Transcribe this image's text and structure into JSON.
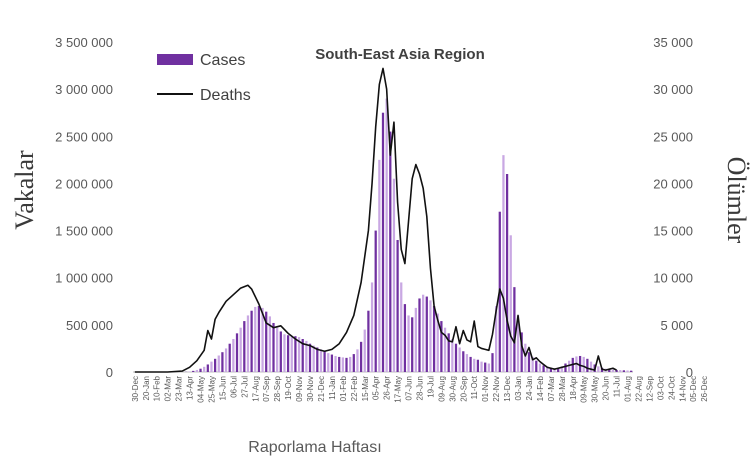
{
  "chart_data": {
    "type": "bar",
    "title": "South-East Asia Region",
    "xlabel": "Raporlama Haftası",
    "ylabel": "Vakalar",
    "y2label": "Ölümler",
    "ylim": [
      0,
      3500000
    ],
    "y2lim": [
      0,
      35000
    ],
    "yticks": [
      "0",
      "500 000",
      "1 000 000",
      "1 500 000",
      "2 000 000",
      "2 500 000",
      "3 000 000",
      "3 500 000"
    ],
    "y2ticks": [
      "0",
      "5 000",
      "10 000",
      "15 000",
      "20 000",
      "25 000",
      "30 000",
      "35 000"
    ],
    "legend_position": "top-left",
    "colors": {
      "cases_dark": "#7030a0",
      "cases_light": "#c9a8e3",
      "deaths": "#111111"
    },
    "x_tick_labels": [
      "30-Dec",
      "20-Jan",
      "10-Feb",
      "02-Mar",
      "23-Mar",
      "13-Apr",
      "04-May",
      "25-May",
      "15-Jun",
      "06-Jul",
      "27-Jul",
      "17-Aug",
      "07-Sep",
      "28-Sep",
      "19-Oct",
      "09-Nov",
      "30-Nov",
      "21-Dec",
      "11-Jan",
      "01-Feb",
      "22-Feb",
      "15-Mar",
      "05-Apr",
      "26-Apr",
      "17-May",
      "07-Jun",
      "28-Jun",
      "19-Jul",
      "09-Aug",
      "30-Aug",
      "20-Sep",
      "11-Oct",
      "01-Nov",
      "22-Nov",
      "13-Dec",
      "03-Jan",
      "24-Jan",
      "14-Feb",
      "07-Mar",
      "28-Mar",
      "18-Apr",
      "09-May",
      "30-May",
      "20-Jun",
      "11-Jul",
      "01-Aug",
      "22-Aug",
      "12-Sep",
      "03-Oct",
      "24-Oct",
      "14-Nov",
      "05-Dec",
      "26-Dec"
    ],
    "series": [
      {
        "name": "Cases",
        "type": "bar",
        "values": [
          0,
          0,
          0,
          0,
          0,
          0,
          0,
          0,
          0,
          0,
          0,
          0,
          0,
          0,
          2000,
          5000,
          12000,
          22000,
          35000,
          55000,
          80000,
          110000,
          140000,
          175000,
          210000,
          250000,
          300000,
          350000,
          410000,
          470000,
          540000,
          600000,
          650000,
          690000,
          700000,
          680000,
          640000,
          590000,
          520000,
          470000,
          430000,
          400000,
          390000,
          380000,
          380000,
          370000,
          350000,
          330000,
          300000,
          280000,
          260000,
          240000,
          220000,
          200000,
          185000,
          170000,
          160000,
          155000,
          150000,
          160000,
          190000,
          240000,
          320000,
          450000,
          650000,
          950000,
          1500000,
          2250000,
          2750000,
          2900000,
          2550000,
          2050000,
          1400000,
          950000,
          720000,
          600000,
          580000,
          680000,
          780000,
          820000,
          800000,
          760000,
          700000,
          620000,
          540000,
          470000,
          410000,
          350000,
          300000,
          260000,
          220000,
          190000,
          160000,
          140000,
          130000,
          110000,
          100000,
          90000,
          200000,
          700000,
          1700000,
          2300000,
          2100000,
          1450000,
          900000,
          600000,
          420000,
          300000,
          210000,
          160000,
          120000,
          90000,
          70000,
          55000,
          45000,
          40000,
          40000,
          60000,
          90000,
          120000,
          150000,
          165000,
          170000,
          160000,
          140000,
          110000,
          80000,
          60000,
          45000,
          35000,
          30000,
          25000,
          22000,
          20000,
          18000,
          16000,
          14000
        ]
      },
      {
        "name": "Deaths",
        "type": "line",
        "x": [
          0,
          5,
          9,
          13,
          15,
          17,
          19,
          20,
          21,
          22,
          23,
          25,
          27,
          29,
          31,
          32,
          34,
          36,
          38,
          40,
          42,
          44,
          46,
          48,
          50,
          52,
          54,
          56,
          58,
          60,
          62,
          64,
          65,
          66,
          67,
          68,
          69,
          70,
          71,
          72,
          73,
          74,
          75,
          76,
          77,
          78,
          79,
          80,
          81,
          82,
          83,
          84,
          85,
          86,
          87,
          88,
          89,
          90,
          91,
          92,
          93,
          94,
          95,
          96,
          97,
          98,
          99,
          100,
          101,
          102,
          103,
          104,
          105,
          106,
          107,
          108,
          109,
          110,
          111,
          112,
          113,
          114,
          115,
          116,
          117,
          118,
          119,
          120,
          121,
          122,
          123,
          124,
          125,
          126,
          127,
          128,
          129,
          130,
          131,
          132
        ],
        "values": [
          0,
          0,
          0,
          100,
          500,
          1200,
          2300,
          4400,
          3500,
          5600,
          6300,
          7500,
          8200,
          8900,
          9200,
          8800,
          7200,
          5200,
          4700,
          4900,
          4100,
          3500,
          3000,
          2800,
          2400,
          2200,
          2400,
          3000,
          4200,
          6000,
          9500,
          15000,
          20000,
          26000,
          30500,
          32200,
          30000,
          23000,
          26500,
          18000,
          13000,
          11500,
          16000,
          20500,
          22000,
          21000,
          19500,
          16500,
          11000,
          7000,
          5500,
          4200,
          3900,
          3300,
          3200,
          4800,
          3000,
          4400,
          3400,
          3200,
          5400,
          2700,
          2500,
          2400,
          2300,
          4000,
          6500,
          8800,
          7800,
          5500,
          3800,
          3100,
          6000,
          2800,
          1700,
          2600,
          1300,
          1500,
          1100,
          800,
          500,
          400,
          300,
          400,
          500,
          600,
          700,
          800,
          900,
          700,
          600,
          400,
          300,
          200,
          1700,
          300,
          200,
          300,
          400,
          200
        ]
      }
    ]
  }
}
